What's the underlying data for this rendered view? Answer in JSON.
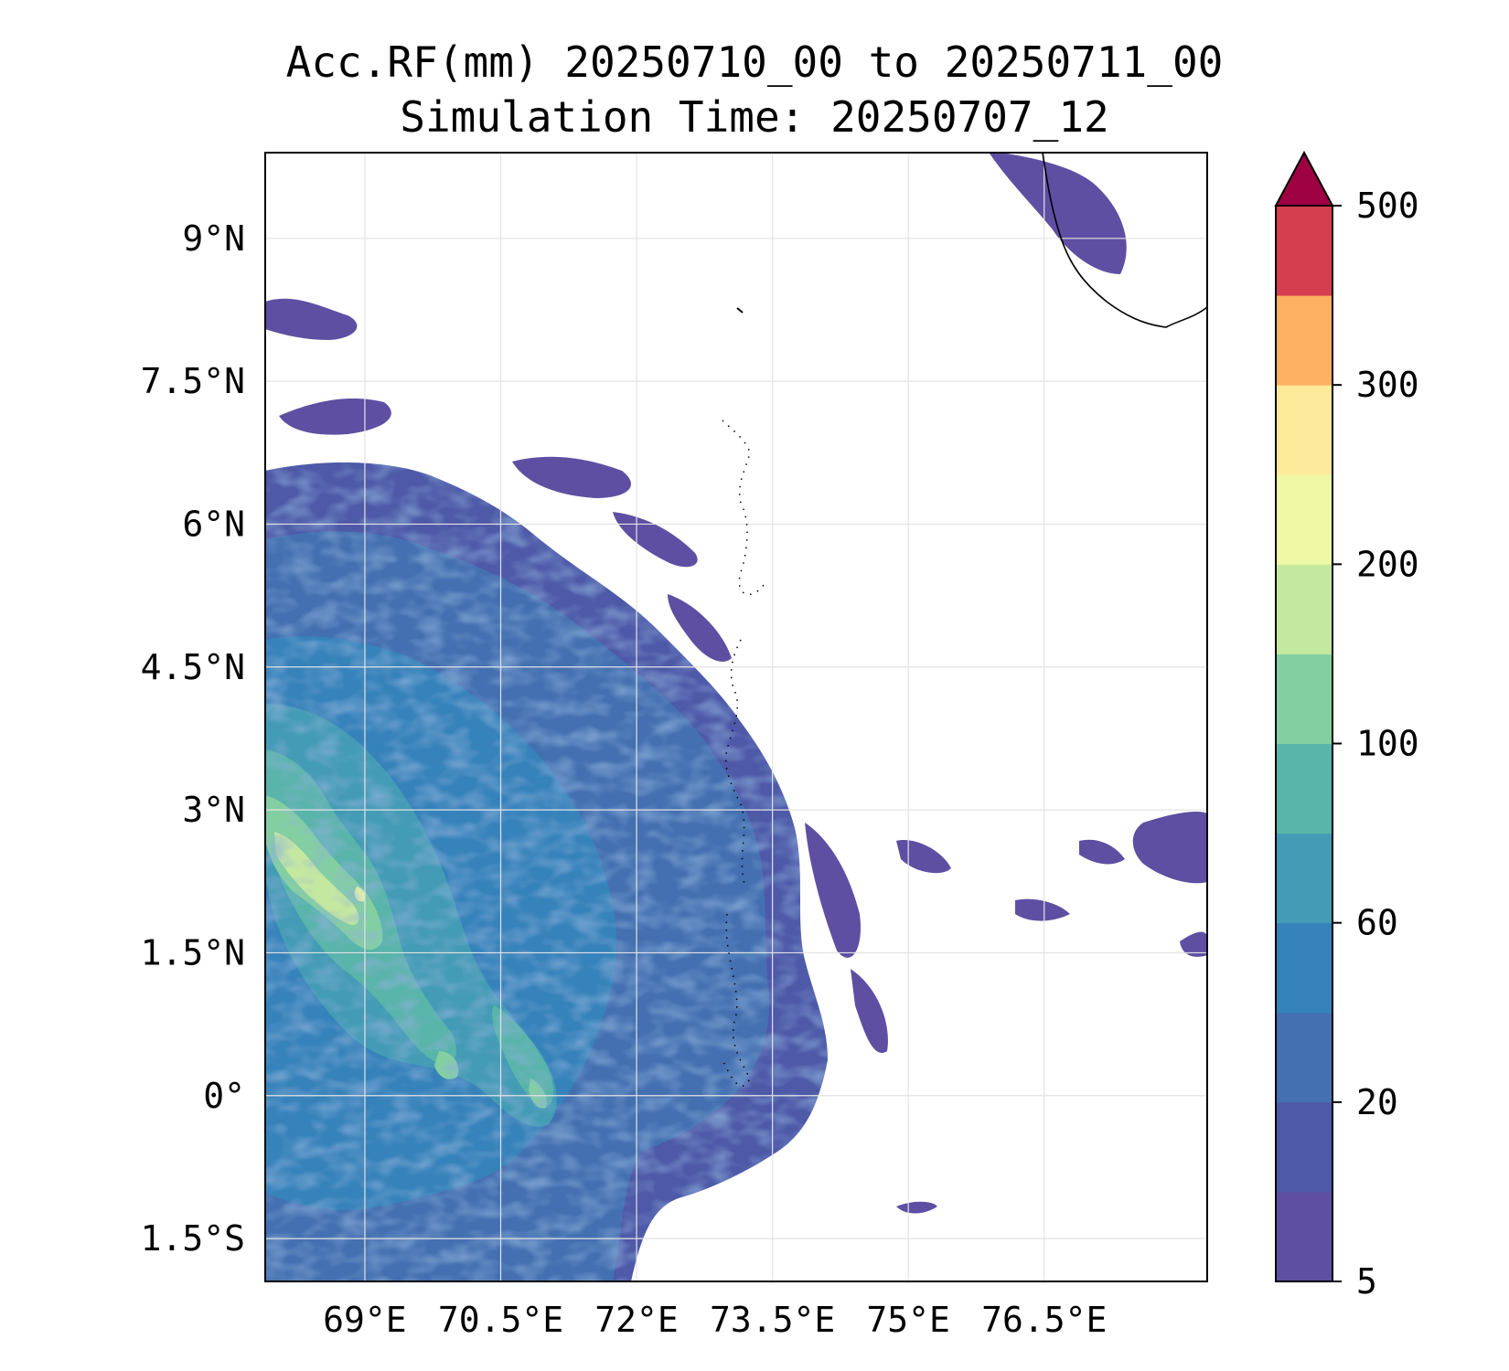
{
  "title": {
    "line1": "Acc.RF(mm) 20250710_00 to 20250711_00",
    "line2": "Simulation Time: 20250707_12"
  },
  "map": {
    "lon_range": [
      67.9,
      78.3
    ],
    "lat_range": [
      -1.95,
      9.9
    ],
    "lon_ticks": [
      {
        "value": 69,
        "label": "69°E"
      },
      {
        "value": 70.5,
        "label": "70.5°E"
      },
      {
        "value": 72,
        "label": "72°E"
      },
      {
        "value": 73.5,
        "label": "73.5°E"
      },
      {
        "value": 75,
        "label": "75°E"
      },
      {
        "value": 76.5,
        "label": "76.5°E"
      }
    ],
    "lat_ticks": [
      {
        "value": 9,
        "label": "9°N"
      },
      {
        "value": 7.5,
        "label": "7.5°N"
      },
      {
        "value": 6,
        "label": "6°N"
      },
      {
        "value": 4.5,
        "label": "4.5°N"
      },
      {
        "value": 3,
        "label": "3°N"
      },
      {
        "value": 1.5,
        "label": "1.5°N"
      },
      {
        "value": 0,
        "label": "0°"
      },
      {
        "value": -1.5,
        "label": "1.5°S"
      }
    ],
    "grid": true,
    "background": "#ffffff"
  },
  "colorbar": {
    "levels": [
      5,
      10,
      20,
      40,
      60,
      80,
      100,
      150,
      200,
      250,
      300,
      400,
      500
    ],
    "colors": [
      "#5e4fa2",
      "#4e59a8",
      "#4470b1",
      "#3682ba",
      "#439bb5",
      "#59b4aa",
      "#84cfa2",
      "#c5e8a0",
      "#eef8a5",
      "#fde99a",
      "#fdb061",
      "#d53e4f"
    ],
    "extend_color": "#9e0142",
    "tick_labels": [
      {
        "level_index": 0,
        "label": "5"
      },
      {
        "level_index": 2,
        "label": "20"
      },
      {
        "level_index": 4,
        "label": "60"
      },
      {
        "level_index": 6,
        "label": "100"
      },
      {
        "level_index": 8,
        "label": "200"
      },
      {
        "level_index": 10,
        "label": "300"
      },
      {
        "level_index": 12,
        "label": "500"
      }
    ]
  }
}
